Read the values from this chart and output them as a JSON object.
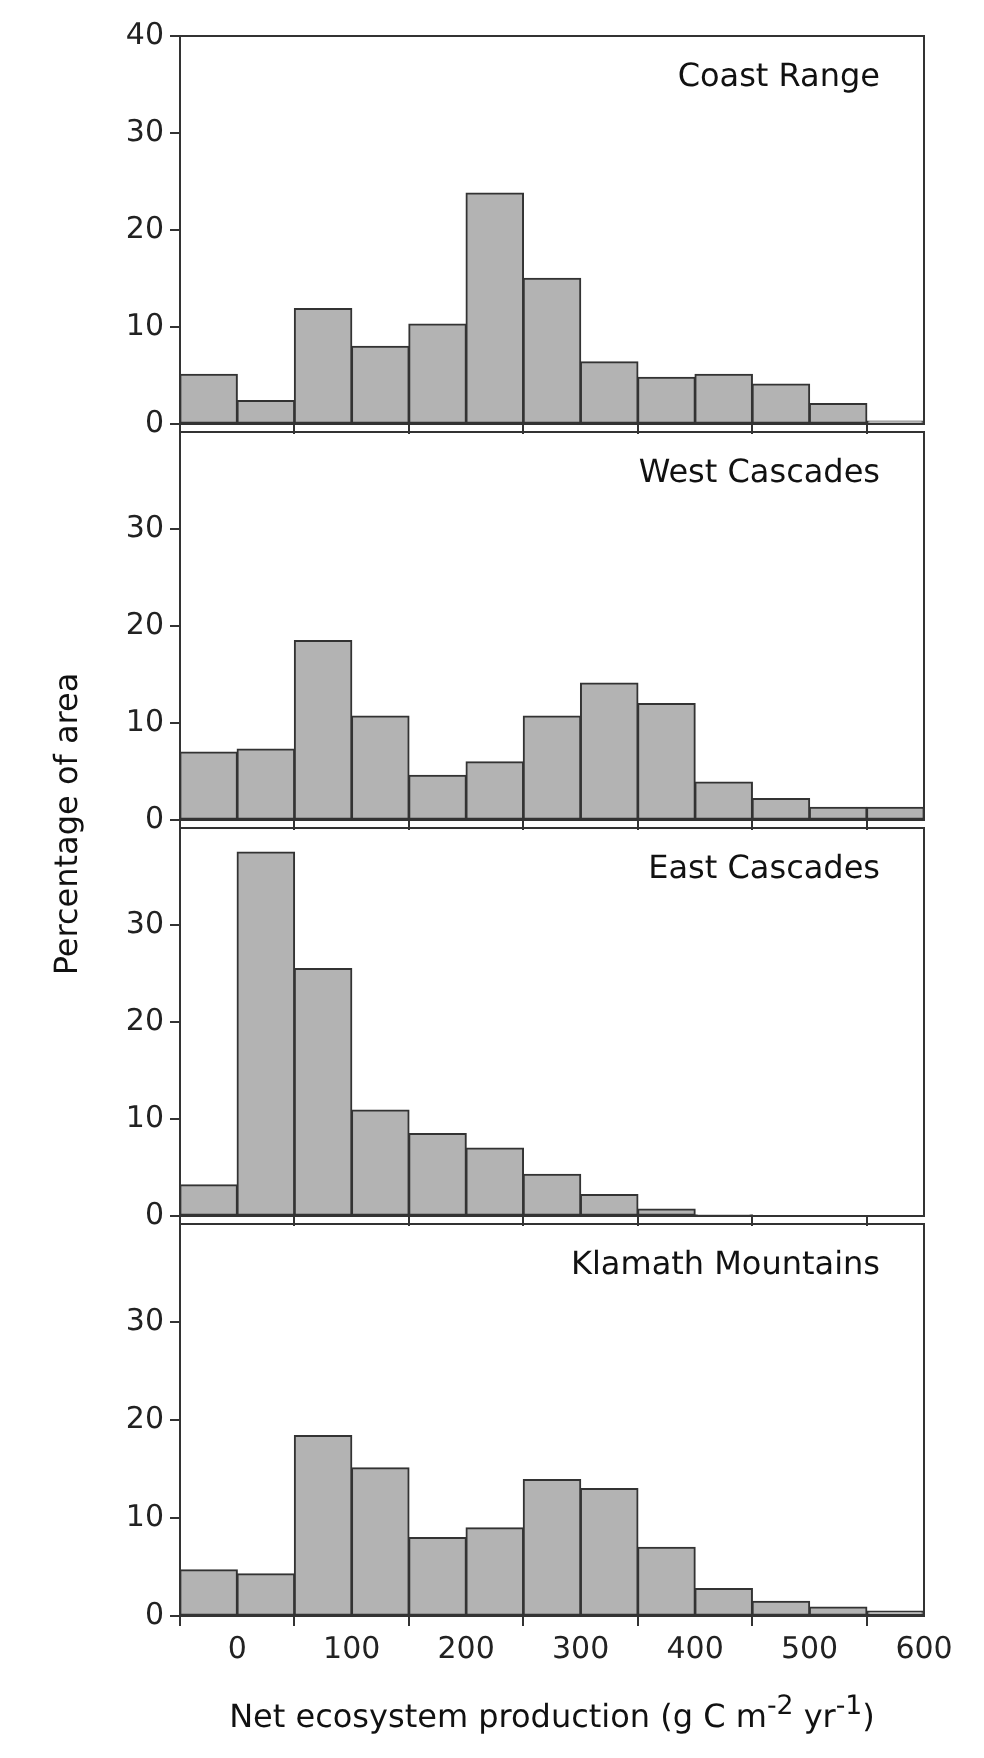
{
  "chart_data": [
    {
      "type": "histogram",
      "title": "Coast Range",
      "bins": [
        -50,
        0,
        50,
        100,
        150,
        200,
        250,
        300,
        350,
        400,
        450,
        500,
        550,
        600
      ],
      "values": [
        5.1,
        2.4,
        11.9,
        8,
        10.3,
        23.8,
        15,
        6.4,
        4.8,
        5.1,
        4.1,
        2.1,
        0.3
      ],
      "color": "#b3b3b3",
      "xlim": [
        -50,
        600
      ],
      "xticks": [
        0,
        100,
        200,
        300,
        400,
        500,
        600
      ],
      "ylim": [
        0,
        40
      ],
      "yticks": [
        0,
        10,
        20,
        30,
        40
      ],
      "tick_labels": "y",
      "grid": false,
      "legend": false
    },
    {
      "type": "histogram",
      "title": "West Cascades",
      "ylabel": "Percentage of area",
      "bins": [
        -50,
        0,
        50,
        100,
        150,
        200,
        250,
        300,
        350,
        400,
        450,
        500,
        550,
        600
      ],
      "values": [
        7,
        7.3,
        18.5,
        10.7,
        4.6,
        6,
        10.7,
        14.1,
        12,
        3.9,
        2.2,
        1.3,
        1.3
      ],
      "color": "#b3b3b3",
      "xlim": [
        -50,
        600
      ],
      "xticks": [
        0,
        100,
        200,
        300,
        400,
        500,
        600
      ],
      "ylim": [
        0,
        40
      ],
      "yticks": [
        0,
        10,
        20,
        30
      ],
      "tick_labels": "y",
      "grid": false,
      "legend": false
    },
    {
      "type": "histogram",
      "title": "East Cascades",
      "bins": [
        -50,
        0,
        50,
        100,
        150,
        200,
        250,
        300,
        350,
        400,
        450,
        500,
        550,
        600
      ],
      "values": [
        3.2,
        37.5,
        25.5,
        10.9,
        8.5,
        7,
        4.3,
        2.2,
        0.7,
        0.1,
        0,
        0,
        0
      ],
      "color": "#b3b3b3",
      "xlim": [
        -50,
        600
      ],
      "xticks": [
        0,
        100,
        200,
        300,
        400,
        500,
        600
      ],
      "ylim": [
        0,
        40
      ],
      "yticks": [
        0,
        10,
        20,
        30
      ],
      "tick_labels": "y",
      "grid": false,
      "legend": false
    },
    {
      "type": "histogram",
      "title": "Klamath Mountains",
      "xlabel": "Net ecosystem production (g C m$^{-2}$ yr$^{-1}$)",
      "bins": [
        -50,
        0,
        50,
        100,
        150,
        200,
        250,
        300,
        350,
        400,
        450,
        500,
        550,
        600
      ],
      "values": [
        4.7,
        4.3,
        18.4,
        15.1,
        8,
        9,
        13.9,
        13,
        7,
        2.8,
        1.5,
        0.9,
        0.5
      ],
      "color": "#b3b3b3",
      "xlim": [
        -50,
        600
      ],
      "xticks": [
        0,
        100,
        200,
        300,
        400,
        500,
        600
      ],
      "ylim": [
        0,
        40
      ],
      "yticks": [
        0,
        10,
        20,
        30
      ],
      "grid": false,
      "legend": false
    }
  ]
}
